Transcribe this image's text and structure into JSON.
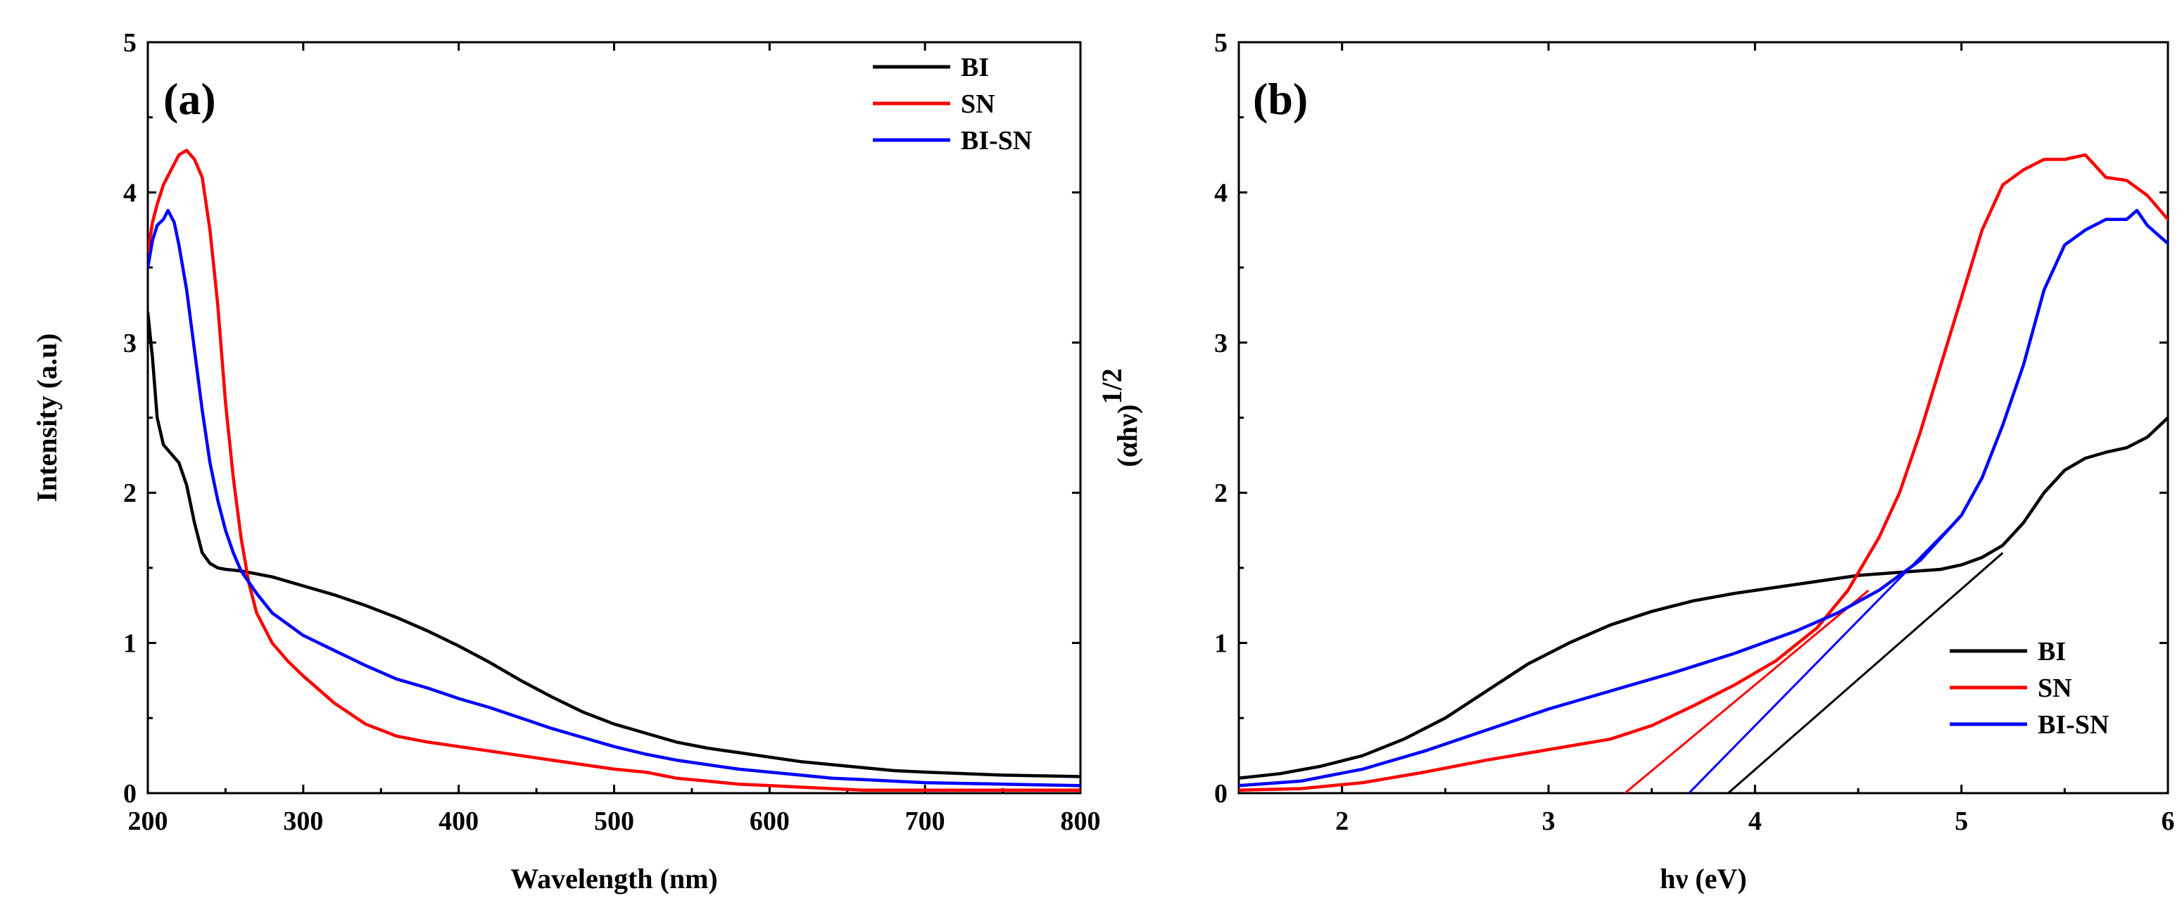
{
  "chart_data": [
    {
      "type": "line",
      "panel_label": "(a)",
      "title": "",
      "xlabel": "Wavelength (nm)",
      "ylabel": "Intensity (a.u)",
      "xlim": [
        200,
        800
      ],
      "ylim": [
        0,
        5
      ],
      "xticks": [
        200,
        300,
        400,
        500,
        600,
        700,
        800
      ],
      "yticks": [
        0,
        1,
        2,
        3,
        4,
        5
      ],
      "legend_position": "top-right",
      "series": [
        {
          "name": "BI",
          "color": "#000000",
          "x": [
            200,
            203,
            206,
            210,
            215,
            220,
            225,
            230,
            235,
            240,
            245,
            250,
            260,
            280,
            300,
            320,
            340,
            360,
            380,
            400,
            420,
            440,
            460,
            480,
            500,
            520,
            540,
            560,
            580,
            600,
            620,
            640,
            660,
            680,
            700,
            750,
            800
          ],
          "y": [
            3.2,
            2.9,
            2.5,
            2.32,
            2.26,
            2.2,
            2.05,
            1.8,
            1.6,
            1.53,
            1.5,
            1.49,
            1.48,
            1.44,
            1.38,
            1.32,
            1.25,
            1.17,
            1.08,
            0.98,
            0.87,
            0.75,
            0.64,
            0.54,
            0.46,
            0.4,
            0.34,
            0.3,
            0.27,
            0.24,
            0.21,
            0.19,
            0.17,
            0.15,
            0.14,
            0.12,
            0.11
          ]
        },
        {
          "name": "SN",
          "color": "#ff0000",
          "x": [
            200,
            203,
            206,
            210,
            215,
            220,
            225,
            230,
            235,
            240,
            245,
            250,
            255,
            260,
            265,
            270,
            280,
            290,
            300,
            320,
            340,
            360,
            380,
            400,
            420,
            440,
            460,
            480,
            500,
            520,
            540,
            560,
            580,
            600,
            620,
            640,
            660,
            700,
            750,
            800
          ],
          "y": [
            3.6,
            3.8,
            3.92,
            4.05,
            4.15,
            4.25,
            4.28,
            4.22,
            4.1,
            3.75,
            3.25,
            2.6,
            2.1,
            1.7,
            1.4,
            1.2,
            1.0,
            0.88,
            0.78,
            0.6,
            0.46,
            0.38,
            0.34,
            0.31,
            0.28,
            0.25,
            0.22,
            0.19,
            0.16,
            0.14,
            0.1,
            0.08,
            0.06,
            0.05,
            0.04,
            0.03,
            0.02,
            0.02,
            0.02,
            0.02
          ]
        },
        {
          "name": "BI-SN",
          "color": "#0000ff",
          "x": [
            200,
            203,
            206,
            210,
            213,
            217,
            220,
            225,
            230,
            235,
            240,
            245,
            250,
            255,
            260,
            270,
            280,
            300,
            320,
            340,
            360,
            380,
            400,
            420,
            440,
            460,
            480,
            500,
            520,
            540,
            560,
            580,
            600,
            620,
            640,
            660,
            700,
            750,
            800
          ],
          "y": [
            3.5,
            3.68,
            3.78,
            3.82,
            3.88,
            3.8,
            3.65,
            3.35,
            2.95,
            2.55,
            2.2,
            1.95,
            1.75,
            1.6,
            1.48,
            1.33,
            1.2,
            1.05,
            0.95,
            0.85,
            0.76,
            0.7,
            0.63,
            0.57,
            0.5,
            0.43,
            0.37,
            0.31,
            0.26,
            0.22,
            0.19,
            0.16,
            0.14,
            0.12,
            0.1,
            0.09,
            0.07,
            0.06,
            0.05
          ]
        }
      ]
    },
    {
      "type": "line",
      "panel_label": "(b)",
      "title": "",
      "xlabel": "hν (eV)",
      "ylabel": "(αhν)",
      "ylabel_superscript": "1/2",
      "xlim": [
        1.5,
        6
      ],
      "ylim": [
        0,
        5
      ],
      "xticks": [
        2,
        3,
        4,
        5,
        6
      ],
      "yticks": [
        0,
        1,
        2,
        3,
        4,
        5
      ],
      "legend_position": "bottom-right",
      "series": [
        {
          "name": "BI",
          "color": "#000000",
          "x": [
            1.5,
            1.7,
            1.9,
            2.1,
            2.3,
            2.5,
            2.7,
            2.9,
            3.1,
            3.3,
            3.5,
            3.7,
            3.9,
            4.1,
            4.3,
            4.5,
            4.7,
            4.9,
            5.0,
            5.1,
            5.2,
            5.3,
            5.4,
            5.5,
            5.6,
            5.7,
            5.8,
            5.9,
            6.0
          ],
          "y": [
            0.1,
            0.13,
            0.18,
            0.25,
            0.36,
            0.5,
            0.68,
            0.86,
            1.0,
            1.12,
            1.21,
            1.28,
            1.33,
            1.37,
            1.41,
            1.45,
            1.47,
            1.49,
            1.52,
            1.57,
            1.65,
            1.8,
            2.0,
            2.15,
            2.23,
            2.27,
            2.3,
            2.37,
            2.5
          ]
        },
        {
          "name": "SN",
          "color": "#ff0000",
          "x": [
            1.5,
            1.8,
            2.1,
            2.4,
            2.7,
            3.0,
            3.3,
            3.5,
            3.7,
            3.9,
            4.1,
            4.3,
            4.45,
            4.6,
            4.7,
            4.8,
            4.9,
            5.0,
            5.1,
            5.2,
            5.3,
            5.4,
            5.5,
            5.6,
            5.7,
            5.8,
            5.9,
            6.0
          ],
          "y": [
            0.02,
            0.03,
            0.07,
            0.14,
            0.22,
            0.29,
            0.36,
            0.45,
            0.58,
            0.72,
            0.88,
            1.1,
            1.35,
            1.7,
            2.0,
            2.4,
            2.85,
            3.3,
            3.75,
            4.05,
            4.15,
            4.22,
            4.22,
            4.25,
            4.1,
            4.08,
            3.98,
            3.82
          ]
        },
        {
          "name": "BI-SN",
          "color": "#0000ff",
          "x": [
            1.5,
            1.8,
            2.1,
            2.4,
            2.7,
            3.0,
            3.3,
            3.6,
            3.9,
            4.2,
            4.4,
            4.6,
            4.8,
            5.0,
            5.1,
            5.2,
            5.3,
            5.4,
            5.5,
            5.6,
            5.7,
            5.8,
            5.85,
            5.9,
            6.0
          ],
          "y": [
            0.05,
            0.08,
            0.16,
            0.28,
            0.42,
            0.56,
            0.68,
            0.8,
            0.93,
            1.08,
            1.2,
            1.35,
            1.55,
            1.85,
            2.1,
            2.45,
            2.85,
            3.35,
            3.65,
            3.75,
            3.82,
            3.82,
            3.88,
            3.78,
            3.66
          ]
        }
      ],
      "fit_lines": [
        {
          "name": "BI-fit",
          "color": "#000000",
          "x": [
            3.87,
            5.2
          ],
          "y": [
            0,
            1.6
          ]
        },
        {
          "name": "SN-fit",
          "color": "#ff0000",
          "x": [
            3.37,
            4.55
          ],
          "y": [
            0,
            1.35
          ]
        },
        {
          "name": "BI-SN-fit",
          "color": "#0000ff",
          "x": [
            3.68,
            5.0
          ],
          "y": [
            0,
            1.85
          ]
        }
      ]
    }
  ]
}
